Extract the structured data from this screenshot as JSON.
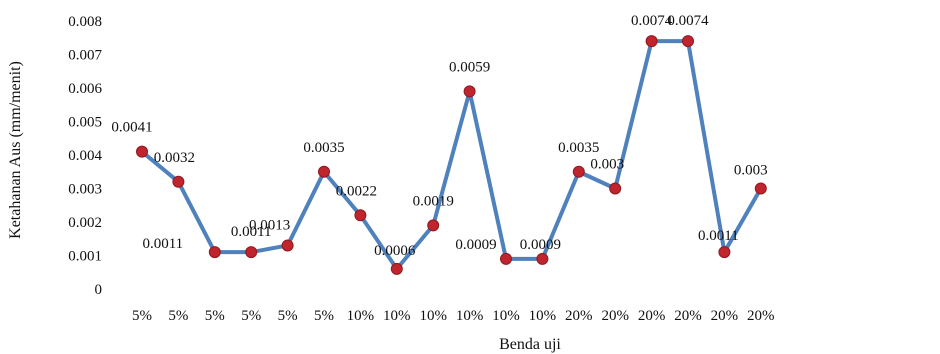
{
  "chart_data": {
    "type": "line",
    "xlabel": "Benda uji",
    "ylabel": "Ketahanan Aus (mm/menit)",
    "ylim": [
      0,
      0.008
    ],
    "yticks": [
      "0",
      "0.001",
      "0.002",
      "0.003",
      "0.004",
      "0.005",
      "0.006",
      "0.007",
      "0.008"
    ],
    "grid": false,
    "categories": [
      "5%",
      "5%",
      "5%",
      "5%",
      "5%",
      "5%",
      "10%",
      "10%",
      "10%",
      "10%",
      "10%",
      "10%",
      "20%",
      "20%",
      "20%",
      "20%",
      "20%",
      "20%"
    ],
    "series": [
      {
        "values": [
          0.0041,
          0.0032,
          0.0011,
          0.0011,
          0.0013,
          0.0035,
          0.0022,
          0.0006,
          0.0019,
          0.0059,
          0.0009,
          0.0009,
          0.0035,
          0.003,
          0.0074,
          0.0074,
          0.0011,
          0.003
        ],
        "labels": [
          "0.0041",
          "0.0032",
          "0.0011",
          "0.0011",
          "0.0013",
          "0.0035",
          "0.0022",
          "0.0006",
          "0.0019",
          "0.0059",
          "0.0009",
          "0.0009",
          "0.0035",
          "0.003",
          "0.0074",
          "0.0074",
          "0.0011",
          "0.003"
        ]
      }
    ],
    "colors": {
      "line": "#4f81bd",
      "marker": "#c0242c"
    }
  }
}
